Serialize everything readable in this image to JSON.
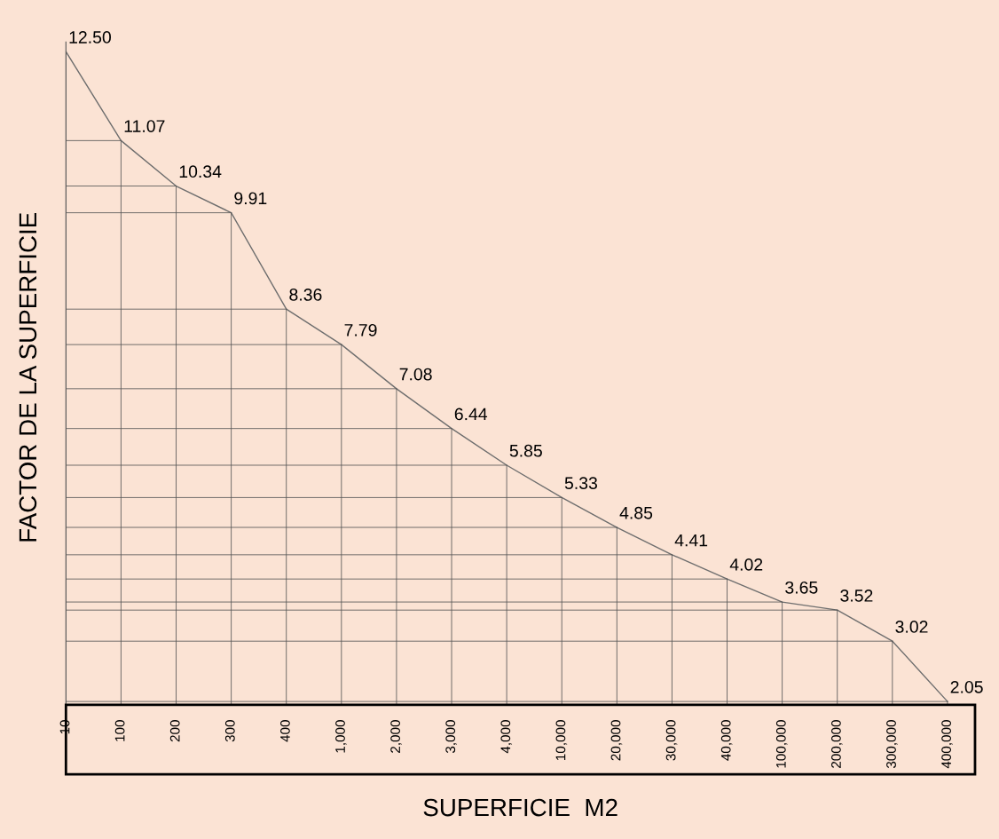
{
  "chart_data": {
    "type": "line",
    "xlabel": "SUPERFICIE  M2",
    "ylabel": "FACTOR DE LA SUPERFICIE",
    "categories": [
      "10",
      "100",
      "200",
      "300",
      "400",
      "1,000",
      "2,000",
      "3,000",
      "4,000",
      "10,000",
      "20,000",
      "30,000",
      "40,000",
      "100,000",
      "200,000",
      "300,000",
      "400,000"
    ],
    "series": [
      {
        "color": "#6e6e6e",
        "values": [
          12.5,
          11.07,
          10.34,
          9.91,
          8.36,
          7.79,
          7.08,
          6.44,
          5.85,
          5.33,
          4.85,
          4.41,
          4.02,
          3.65,
          3.52,
          3.02,
          2.05
        ],
        "value_labels": [
          "12.50",
          "11.07",
          "10.34",
          "9.91",
          "8.36",
          "7.79",
          "7.08",
          "6.44",
          "5.85",
          "5.33",
          "4.85",
          "4.41",
          "4.02",
          "3.65",
          "3.52",
          "3.02",
          "2.05"
        ]
      }
    ],
    "grid": true,
    "marker": "none",
    "line_style": "solid"
  }
}
